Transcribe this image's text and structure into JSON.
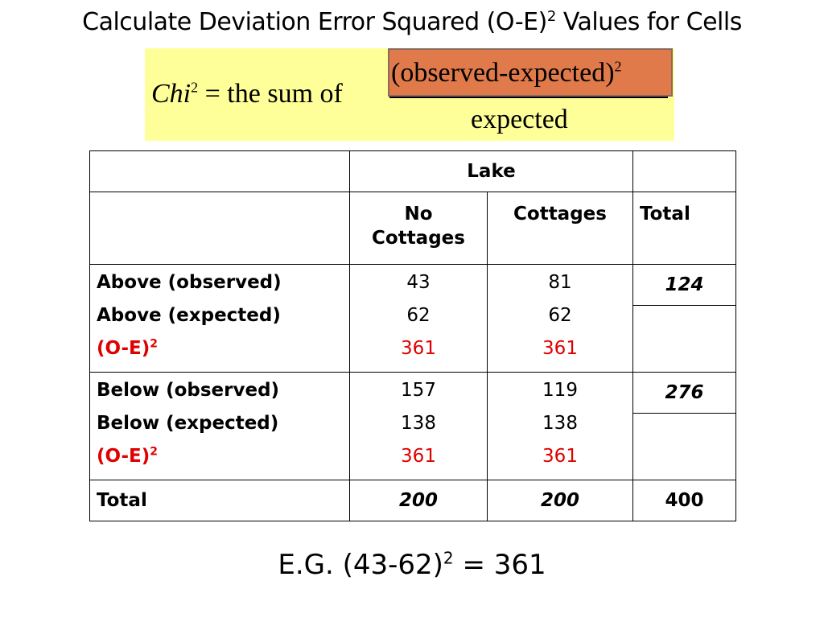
{
  "title": {
    "main": "Calculate Deviation Error Squared (O-E)",
    "sup": "2",
    "tail": " Values for Cells"
  },
  "formula": {
    "chi": "Chi",
    "chi_sup": "2",
    "equals": " = the sum of ",
    "numerator": "(observed-expected)",
    "numerator_sup": "2",
    "denominator": "expected",
    "highlight_color": "#ffff99",
    "numerator_box_color": "#e07a4a"
  },
  "table": {
    "header_top": "Lake",
    "header_no_cottages": "No Cottages",
    "header_cottages": "Cottages",
    "header_total": "Total",
    "above": {
      "label_obs": "Above (observed)",
      "label_exp": "Above (expected)",
      "label_oe": "(O-E)",
      "label_oe_sup": "2",
      "no_obs": "43",
      "no_exp": "62",
      "no_oe": "361",
      "c_obs": "81",
      "c_exp": "62",
      "c_oe": "361",
      "total": "124"
    },
    "below": {
      "label_obs": "Below (observed)",
      "label_exp": "Below (expected)",
      "label_oe": "(O-E)",
      "label_oe_sup": "2",
      "no_obs": "157",
      "no_exp": "138",
      "no_oe": "361",
      "c_obs": "119",
      "c_exp": "138",
      "c_oe": "361",
      "total": "276"
    },
    "total_row": {
      "label": "Total",
      "no": "200",
      "c": "200",
      "all": "400"
    }
  },
  "example": {
    "prefix": "E.G. (43-62)",
    "sup": "2",
    "suffix": " = 361"
  },
  "colors": {
    "red": "#e00000"
  }
}
